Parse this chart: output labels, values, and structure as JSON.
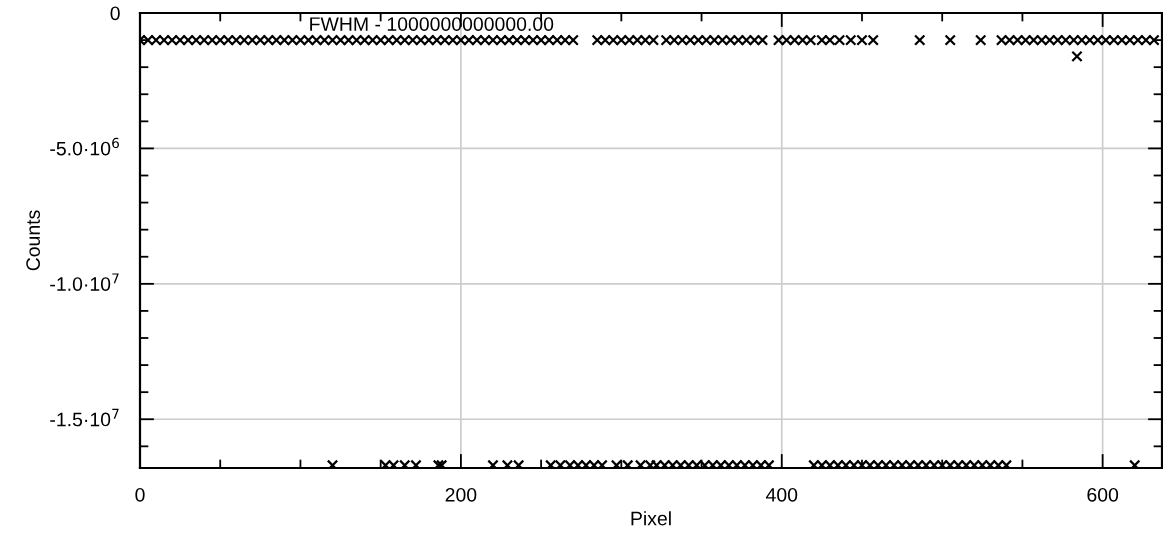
{
  "chart_data": {
    "type": "scatter",
    "xlabel": "Pixel",
    "ylabel": "Counts",
    "annotations": [
      "FWHM - 1000000000000.00"
    ],
    "xlim": [
      0,
      637
    ],
    "xticks": [
      0,
      200,
      400,
      600
    ],
    "ylim": [
      -16800000,
      0
    ],
    "yticks": [
      {
        "value": 0,
        "label": "0"
      },
      {
        "value": -5000000,
        "label": "-5.0·10$^{6}$"
      },
      {
        "value": -10000000,
        "label": "-1.0·10$^{7}$"
      },
      {
        "value": -15000000,
        "label": "-1.5·10$^{7}$"
      }
    ],
    "grid": true,
    "marker": "cross",
    "series": [
      {
        "color": "#000000",
        "x": [
          0,
          5,
          10,
          15,
          20,
          25,
          30,
          35,
          40,
          45,
          50,
          55,
          60,
          65,
          70,
          75,
          80,
          85,
          90,
          95,
          100,
          105,
          110,
          115,
          120,
          125,
          130,
          135,
          140,
          145,
          150,
          155,
          160,
          165,
          170,
          175,
          180,
          185,
          190,
          195,
          200,
          205,
          210,
          215,
          220,
          225,
          230,
          235,
          240,
          245,
          250,
          255,
          260,
          265,
          270,
          285,
          290,
          295,
          300,
          305,
          310,
          315,
          320,
          328,
          333,
          338,
          343,
          348,
          353,
          358,
          363,
          368,
          373,
          378,
          383,
          388,
          398,
          403,
          408,
          413,
          418,
          425,
          430,
          436,
          443,
          450,
          457,
          486,
          505,
          524,
          537,
          542,
          547,
          552,
          557,
          562,
          567,
          572,
          577,
          582,
          587,
          592,
          597,
          602,
          607,
          612,
          617,
          622,
          627,
          632,
          584
        ],
        "values": [
          -1000000,
          -1000000,
          -1000000,
          -1000000,
          -1000000,
          -1000000,
          -1000000,
          -1000000,
          -1000000,
          -1000000,
          -1000000,
          -1000000,
          -1000000,
          -1000000,
          -1000000,
          -1000000,
          -1000000,
          -1000000,
          -1000000,
          -1000000,
          -1000000,
          -1000000,
          -1000000,
          -1000000,
          -1000000,
          -1000000,
          -1000000,
          -1000000,
          -1000000,
          -1000000,
          -1000000,
          -1000000,
          -1000000,
          -1000000,
          -1000000,
          -1000000,
          -1000000,
          -1000000,
          -1000000,
          -1000000,
          -1000000,
          -1000000,
          -1000000,
          -1000000,
          -1000000,
          -1000000,
          -1000000,
          -1000000,
          -1000000,
          -1000000,
          -1000000,
          -1000000,
          -1000000,
          -1000000,
          -1000000,
          -1000000,
          -1000000,
          -1000000,
          -1000000,
          -1000000,
          -1000000,
          -1000000,
          -1000000,
          -1000000,
          -1000000,
          -1000000,
          -1000000,
          -1000000,
          -1000000,
          -1000000,
          -1000000,
          -1000000,
          -1000000,
          -1000000,
          -1000000,
          -1000000,
          -1000000,
          -1000000,
          -1000000,
          -1000000,
          -1000000,
          -1000000,
          -1000000,
          -1000000,
          -1000000,
          -1000000,
          -1000000,
          -1000000,
          -1000000,
          -1000000,
          -1000000,
          -1000000,
          -1000000,
          -1000000,
          -1000000,
          -1000000,
          -1000000,
          -1000000,
          -1000000,
          -1000000,
          -1000000,
          -1000000,
          -1000000,
          -1000000,
          -1000000,
          -1000000,
          -1000000,
          -1000000,
          -1000000,
          -1000000,
          -1600000
        ]
      },
      {
        "color": "#000000",
        "x": [
          120,
          153,
          158,
          165,
          172,
          186,
          188,
          220,
          229,
          236,
          256,
          262,
          268,
          273,
          278,
          283,
          288,
          297,
          304,
          312,
          318,
          322,
          327,
          332,
          337,
          342,
          347,
          352,
          357,
          362,
          367,
          372,
          377,
          382,
          387,
          392,
          420,
          425,
          430,
          435,
          440,
          445,
          450,
          455,
          460,
          465,
          470,
          475,
          480,
          485,
          490,
          495,
          500,
          505,
          510,
          515,
          520,
          525,
          530,
          535,
          540,
          620
        ],
        "values": [
          -16700000,
          -16700000,
          -16700000,
          -16700000,
          -16700000,
          -16700000,
          -16700000,
          -16700000,
          -16700000,
          -16700000,
          -16700000,
          -16700000,
          -16700000,
          -16700000,
          -16700000,
          -16700000,
          -16700000,
          -16700000,
          -16700000,
          -16700000,
          -16700000,
          -16700000,
          -16700000,
          -16700000,
          -16700000,
          -16700000,
          -16700000,
          -16700000,
          -16700000,
          -16700000,
          -16700000,
          -16700000,
          -16700000,
          -16700000,
          -16700000,
          -16700000,
          -16700000,
          -16700000,
          -16700000,
          -16700000,
          -16700000,
          -16700000,
          -16700000,
          -16700000,
          -16700000,
          -16700000,
          -16700000,
          -16700000,
          -16700000,
          -16700000,
          -16700000,
          -16700000,
          -16700000,
          -16700000,
          -16700000,
          -16700000,
          -16700000,
          -16700000,
          -16700000,
          -16700000,
          -16700000,
          -16700000
        ]
      }
    ]
  }
}
